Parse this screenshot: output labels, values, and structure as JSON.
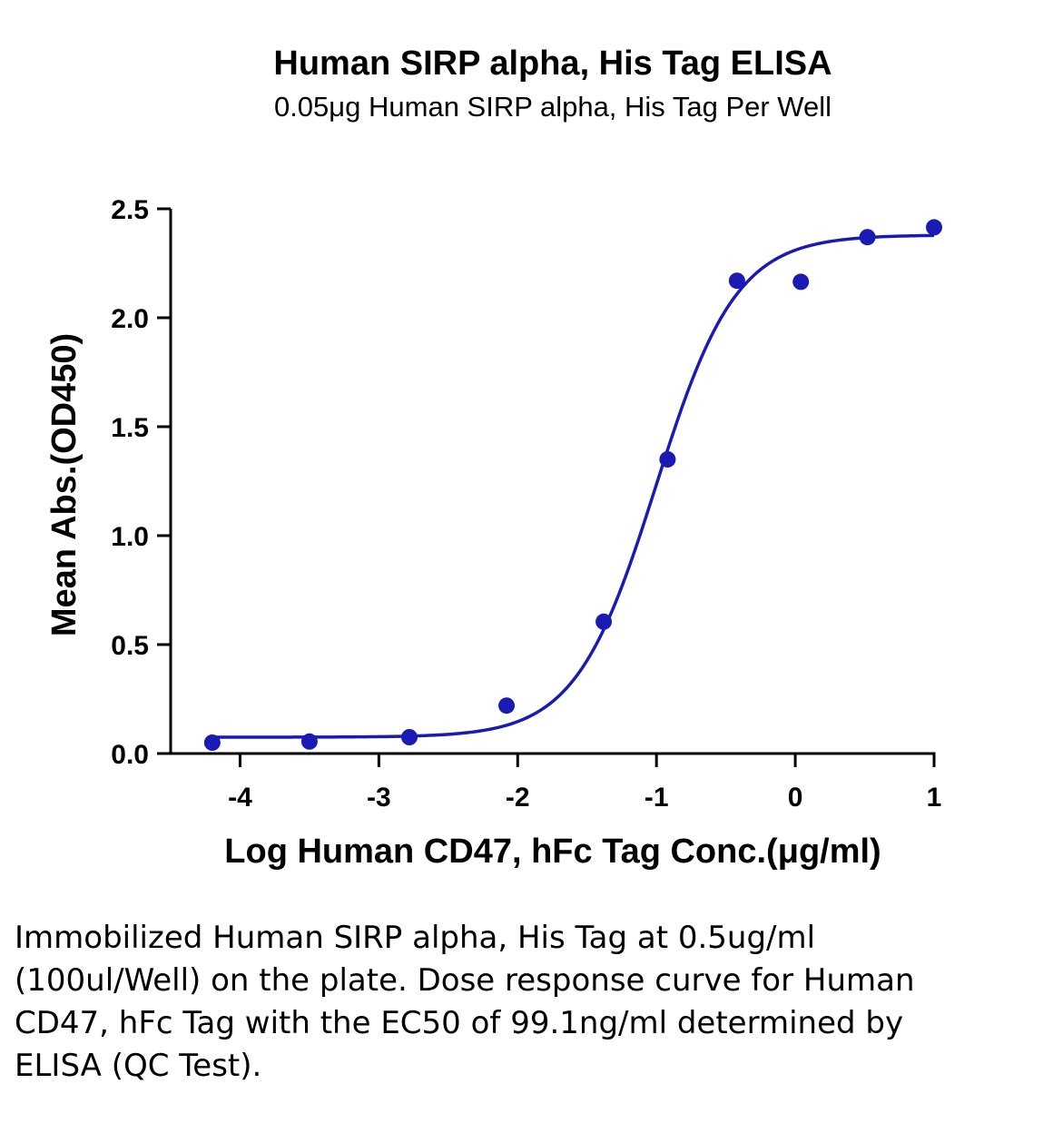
{
  "chart_data": {
    "type": "scatter",
    "title": "Human SIRP alpha, His Tag ELISA",
    "subtitle": "0.05μg Human SIRP alpha, His Tag Per Well",
    "xlabel": "Log Human CD47, hFc Tag Conc.(μg/ml)",
    "ylabel": "Mean Abs.(OD450)",
    "xlim": [
      -4.5,
      1.0
    ],
    "ylim": [
      0.0,
      2.5
    ],
    "x_ticks": [
      -4,
      -3,
      -2,
      -1,
      0,
      1
    ],
    "x_tick_labels": [
      "-4",
      "-3",
      "-2",
      "-1",
      "0",
      "1"
    ],
    "y_ticks": [
      0.0,
      0.5,
      1.0,
      1.5,
      2.0,
      2.5
    ],
    "y_tick_labels": [
      "0.0",
      "0.5",
      "1.0",
      "1.5",
      "2.0",
      "2.5"
    ],
    "grid": false,
    "series": [
      {
        "color": "#1a1ab4",
        "x": [
          -4.2,
          -3.5,
          -2.78,
          -2.08,
          -1.38,
          -0.92,
          -0.42,
          0.04,
          0.52,
          1.0
        ],
        "y": [
          0.05,
          0.055,
          0.075,
          0.22,
          0.605,
          1.35,
          2.17,
          2.165,
          2.37,
          2.415
        ]
      }
    ],
    "fit_curve": {
      "model": "4PL",
      "bottom": 0.075,
      "top": 2.38,
      "log_ec50": -1.004,
      "hill_slope": 1.5,
      "color": "#1a1ab4"
    }
  },
  "caption": "Immobilized Human SIRP alpha, His Tag at 0.5ug/ml (100ul/Well) on the plate. Dose response curve for Human CD47, hFc Tag with the EC50 of 99.1ng/ml determined by ELISA (QC Test)."
}
